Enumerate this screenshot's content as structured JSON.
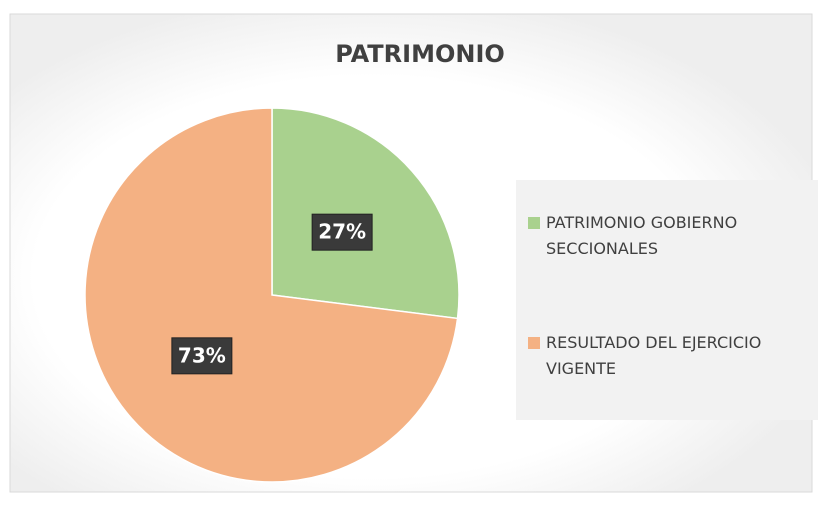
{
  "chart_data": {
    "type": "pie",
    "title": "PATRIMONIO",
    "categories": [
      "PATRIMONIO GOBIERNO SECCIONALES",
      "RESULTADO DEL EJERCICIO VIGENTE"
    ],
    "values": [
      27,
      73
    ],
    "value_labels": [
      "27%",
      "73%"
    ],
    "colors": [
      "#a9d18e",
      "#f4b183"
    ],
    "legend": "right"
  }
}
